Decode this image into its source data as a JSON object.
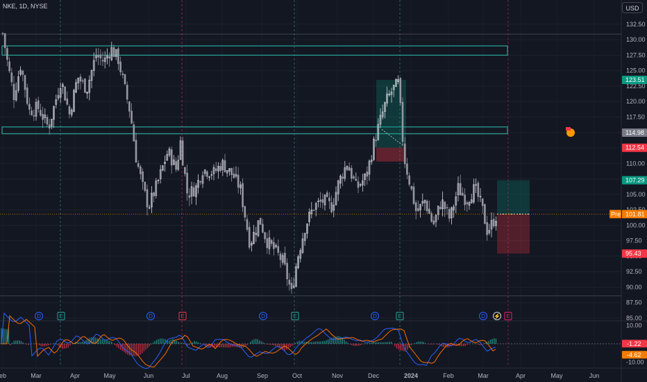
{
  "header": {
    "symbol_line": "NKE, 1D, NYSE",
    "currency": "USD"
  },
  "chart_data": {
    "type": "candlestick",
    "symbol": "NKE",
    "interval": "1D",
    "exchange": "NYSE",
    "price_axis": {
      "ticks": [
        "132.50",
        "130.00",
        "127.50",
        "125.00",
        "122.50",
        "120.00",
        "117.50",
        "115.00",
        "112.50",
        "110.00",
        "107.50",
        "105.00",
        "102.50",
        "100.00",
        "97.50",
        "95.00",
        "92.50",
        "90.00",
        "87.50",
        "85.00"
      ],
      "range": [
        85,
        133.5
      ]
    },
    "time_axis": {
      "labels": [
        "eb",
        "Mar",
        "Apr",
        "May",
        "Jun",
        "Jul",
        "Aug",
        "Sep",
        "Oct",
        "Nov",
        "Dec",
        "2024",
        "Feb",
        "Mar",
        "Apr",
        "May",
        "Jun"
      ]
    },
    "price_tags": [
      {
        "value": "123.51",
        "color": "#089981"
      },
      {
        "value": "114.98",
        "color": "#787b86"
      },
      {
        "value": "112.54",
        "color": "#f23645"
      },
      {
        "value": "107.29",
        "color": "#089981"
      },
      {
        "prefix": "Pre",
        "value": "101.81",
        "color": "#f57c00"
      },
      {
        "value": "95.43",
        "color": "#f23645"
      }
    ],
    "zones": [
      {
        "low": 127.5,
        "high": 129.0,
        "color": "#26a69a"
      },
      {
        "low": 114.8,
        "high": 115.9,
        "color": "#26a69a"
      }
    ],
    "positions": [
      {
        "entry": 112.54,
        "target": 123.51,
        "stop": 112.54,
        "stop_low": 110.3
      },
      {
        "entry": 101.81,
        "target": 107.29,
        "stop": 95.43
      }
    ],
    "events": [
      "D",
      "E",
      "D",
      "E",
      "D",
      "E",
      "D",
      "E",
      "D",
      "⚡",
      "E"
    ],
    "macd_axis": {
      "ticks": [
        "10.00",
        "0.00",
        "-10.00"
      ],
      "range": [
        -12.5,
        12.5
      ]
    },
    "macd_tags": [
      {
        "value": "-1.22",
        "color": "#f23645"
      },
      {
        "value": "-4.62",
        "color": "#f57c00"
      }
    ]
  }
}
